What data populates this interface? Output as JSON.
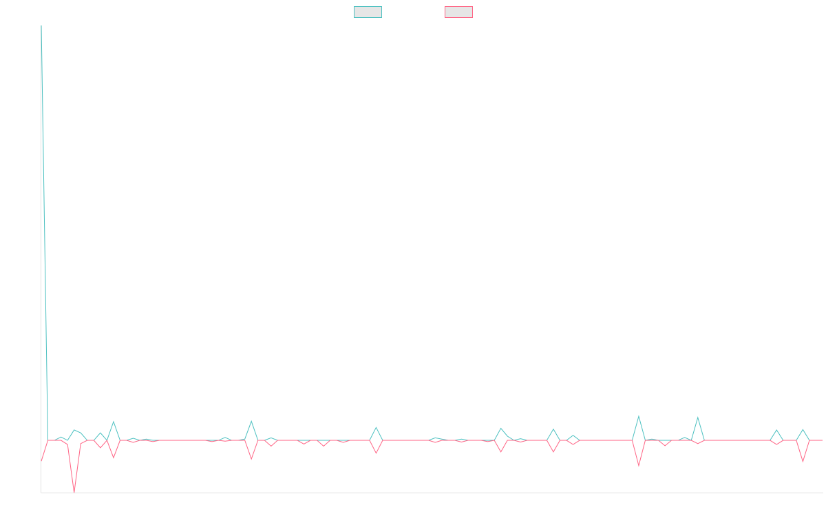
{
  "chart_data": {
    "type": "line",
    "legend": "top",
    "categories": [
      null,
      null,
      null,
      null,
      null,
      null,
      null,
      null,
      null,
      null,
      null,
      null,
      null,
      null,
      null,
      null,
      null,
      null,
      null,
      null,
      null,
      null,
      null,
      null,
      null,
      null,
      null,
      null,
      null,
      null,
      null,
      null,
      null,
      null,
      null,
      null,
      null,
      null,
      null,
      null,
      null,
      null,
      null,
      null,
      null,
      null,
      null,
      null,
      null,
      null,
      null,
      null,
      null,
      null,
      null,
      null,
      null,
      null,
      null,
      null,
      null,
      null,
      null,
      null,
      null,
      null,
      null,
      null,
      null,
      null,
      null,
      null,
      null,
      null,
      null,
      null,
      null,
      null,
      null,
      null,
      null,
      null,
      null,
      null,
      null,
      null,
      null,
      null,
      null,
      null,
      null,
      null,
      null,
      null,
      null,
      null,
      null,
      null,
      null,
      null,
      null,
      null,
      null,
      null,
      null,
      null,
      null,
      null,
      null,
      null,
      null,
      null,
      null,
      null,
      null,
      null,
      null,
      null,
      null,
      null
    ],
    "ylim": [
      -12.6,
      100
    ],
    "series": [
      {
        "color": "#4bc0c0",
        "values": [
          100,
          0,
          0,
          0.8,
          0,
          2.5,
          1.8,
          0,
          0,
          1.8,
          0,
          4.5,
          0,
          0,
          0.5,
          0,
          0.3,
          0,
          0,
          0,
          0,
          0,
          0,
          0,
          0,
          0,
          0,
          0,
          0.7,
          0,
          0,
          0.3,
          4.6,
          0,
          0,
          0.6,
          0,
          0,
          0,
          0,
          0,
          0,
          0,
          0,
          0,
          0,
          0,
          0,
          0,
          0,
          0,
          3.1,
          0,
          0,
          0,
          0,
          0,
          0,
          0,
          0,
          0.6,
          0.3,
          0,
          0,
          0.3,
          0,
          0,
          0,
          0,
          0,
          2.9,
          1,
          0,
          0.4,
          0,
          0,
          0,
          0,
          2.7,
          0,
          0,
          1.2,
          0,
          0,
          0,
          0,
          0,
          0,
          0,
          0,
          0,
          5.8,
          0,
          0.3,
          0,
          0,
          0,
          0,
          0.7,
          0,
          5.5,
          0,
          0,
          0,
          0,
          0,
          0,
          0,
          0,
          0,
          0,
          0,
          2.5,
          0,
          0,
          0,
          2.6,
          0,
          0,
          0
        ]
      },
      {
        "color": "#ff6384",
        "values": [
          -5,
          0,
          0,
          0,
          -1,
          -12.6,
          -0.8,
          0,
          0,
          -1.8,
          0,
          -4.2,
          0,
          0,
          -0.5,
          0,
          0,
          -0.3,
          0,
          0,
          0,
          0,
          0,
          0,
          0,
          0,
          -0.3,
          0,
          -0.2,
          0,
          0,
          0,
          -4.5,
          0,
          0,
          -1.4,
          0,
          0,
          0,
          0,
          -0.9,
          0,
          0,
          -1.4,
          0,
          0,
          -0.5,
          0,
          0,
          0,
          0,
          -3.1,
          0,
          0,
          0,
          0,
          0,
          0,
          0,
          0,
          -0.5,
          0,
          0,
          0,
          -0.4,
          0,
          0,
          0,
          -0.3,
          0,
          -2.8,
          0,
          0,
          -0.4,
          0,
          0,
          0,
          0,
          -2.8,
          0,
          0,
          -1,
          0,
          0,
          0,
          0,
          0,
          0,
          0,
          0,
          0,
          -6.1,
          0,
          0,
          0,
          -1.3,
          0,
          0,
          0,
          0,
          -0.8,
          0,
          0,
          0,
          0,
          0,
          0,
          0,
          0,
          0,
          0,
          0,
          -1,
          0,
          0,
          0,
          -5.1,
          0,
          0,
          0
        ]
      }
    ]
  }
}
